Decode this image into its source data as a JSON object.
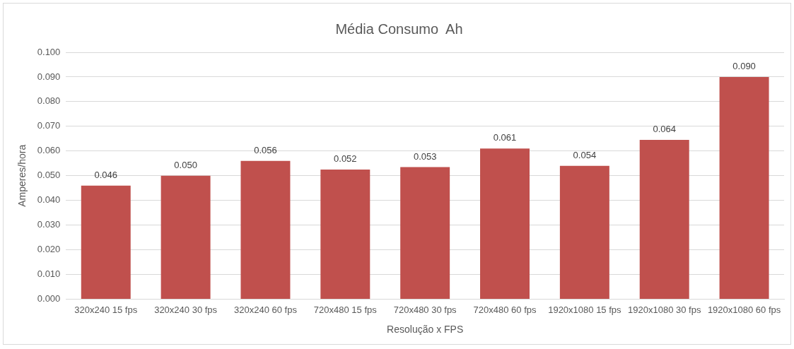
{
  "chart_data": {
    "type": "bar",
    "title": "Média Consumo  Ah",
    "xlabel": "Resolução x FPS",
    "ylabel": "Amperes/hora",
    "categories": [
      "320x240 15 fps",
      "320x240 30 fps",
      "320x240 60 fps",
      "720x480 15 fps",
      "720x480 30 fps",
      "720x480 60 fps",
      "1920x1080 15 fps",
      "1920x1080 30 fps",
      "1920x1080 60 fps"
    ],
    "values": [
      0.046,
      0.05,
      0.056,
      0.0525,
      0.0535,
      0.061,
      0.054,
      0.0645,
      0.09
    ],
    "value_labels": [
      "0.046",
      "0.050",
      "0.056",
      "0.052",
      "0.053",
      "0.061",
      "0.054",
      "0.064",
      "0.090"
    ],
    "color": "#c0504d",
    "ylim": [
      0,
      0.1
    ],
    "yticks": [
      {
        "value": 0,
        "label": "0.000"
      },
      {
        "value": 0.01,
        "label": "0.010"
      },
      {
        "value": 0.02,
        "label": "0.020"
      },
      {
        "value": 0.03,
        "label": "0.030"
      },
      {
        "value": 0.04,
        "label": "0.040"
      },
      {
        "value": 0.05,
        "label": "0.050"
      },
      {
        "value": 0.06,
        "label": "0.060"
      },
      {
        "value": 0.07,
        "label": "0.070"
      },
      {
        "value": 0.08,
        "label": "0.080"
      },
      {
        "value": 0.09,
        "label": "0.090"
      },
      {
        "value": 0.1,
        "label": "0.100"
      }
    ],
    "grid": "y"
  }
}
